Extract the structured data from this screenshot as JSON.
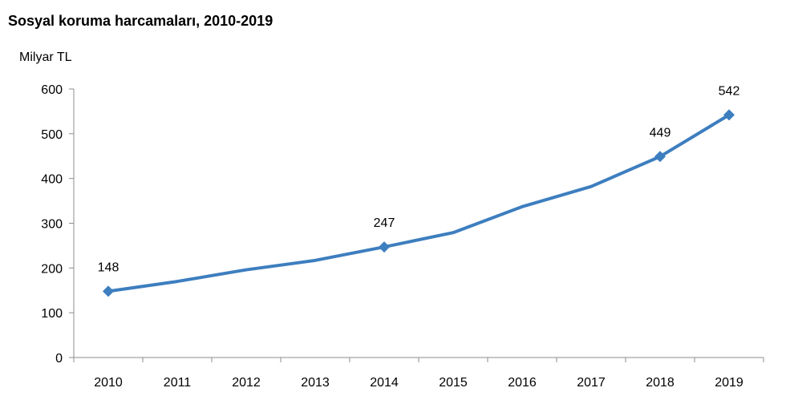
{
  "title": "Sosyal koruma harcamaları, 2010-2019",
  "chart_data": {
    "type": "line",
    "title": "Sosyal koruma harcamaları, 2010-2019",
    "ylabel": "Milyar TL",
    "xlabel": "",
    "categories": [
      "2010",
      "2011",
      "2012",
      "2013",
      "2014",
      "2015",
      "2016",
      "2017",
      "2018",
      "2019"
    ],
    "series": [
      {
        "values": [
          148,
          170,
          196,
          217,
          247,
          279,
          337,
          382,
          449,
          542
        ],
        "color": "#3d7ebf"
      }
    ],
    "data_labels": [
      {
        "category": "2010",
        "text": "148"
      },
      {
        "category": "2014",
        "text": "247"
      },
      {
        "category": "2018",
        "text": "449"
      },
      {
        "category": "2019",
        "text": "542"
      }
    ],
    "marked_points": [
      "2010",
      "2014",
      "2018",
      "2019"
    ],
    "ylim": [
      0,
      600
    ],
    "yticks": [
      0,
      100,
      200,
      300,
      400,
      500,
      600
    ],
    "grid": false,
    "legend": "none"
  }
}
